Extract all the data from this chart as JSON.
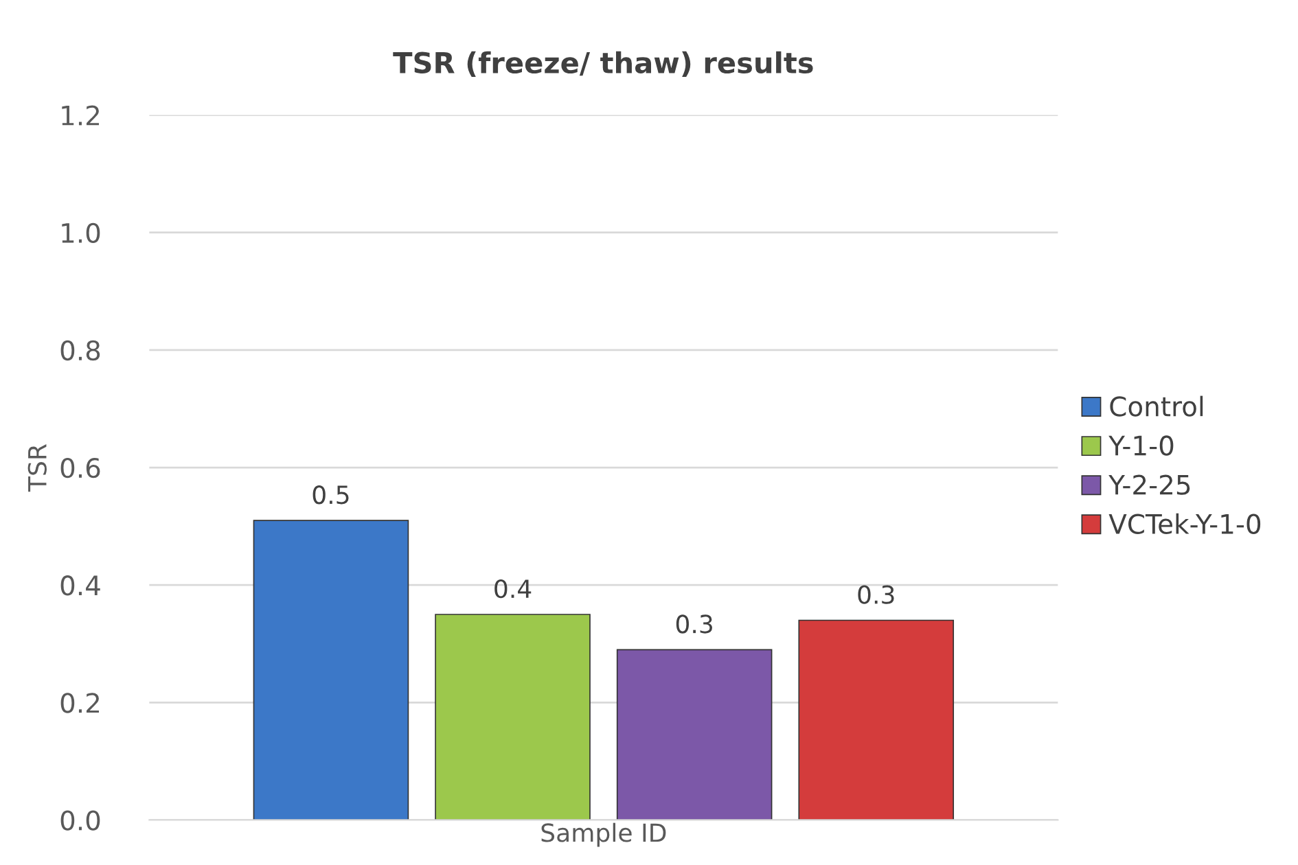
{
  "chart_data": {
    "type": "bar",
    "title": "TSR (freeze/ thaw) results",
    "xlabel": "Sample ID",
    "ylabel": "TSR",
    "categories": [
      null
    ],
    "series": [
      {
        "name": "Control",
        "color": "#3c78c8",
        "values": [
          0.51
        ],
        "value_labels": [
          "0.5"
        ]
      },
      {
        "name": "Y-1-0",
        "color": "#9cc84c",
        "values": [
          0.35
        ],
        "value_labels": [
          "0.4"
        ]
      },
      {
        "name": "Y-2-25",
        "color": "#7c58a8",
        "values": [
          0.29
        ],
        "value_labels": [
          "0.3"
        ]
      },
      {
        "name": "VCTek-Y-1-0",
        "color": "#d43c3c",
        "values": [
          0.34
        ],
        "value_labels": [
          "0.3"
        ]
      }
    ],
    "ylim": [
      0,
      1.2
    ],
    "yticks": [
      {
        "value": 0,
        "label": "0.0"
      },
      {
        "value": 0.2,
        "label": "0.2"
      },
      {
        "value": 0.4,
        "label": "0.4"
      },
      {
        "value": 0.6,
        "label": "0.6"
      },
      {
        "value": 0.8,
        "label": "0.8"
      },
      {
        "value": 1.0,
        "label": "1.0"
      },
      {
        "value": 1.2,
        "label": "1.2"
      }
    ],
    "grid": "y",
    "legend": "right"
  }
}
